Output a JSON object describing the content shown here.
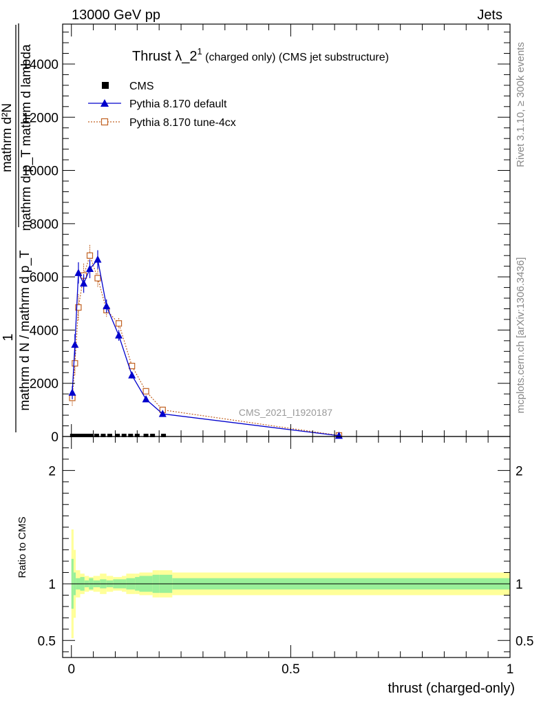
{
  "header": {
    "left": "13000 GeV pp",
    "right": "Jets"
  },
  "side": {
    "rivet": "Rivet 3.1.10, ≥ 300k events",
    "mcplots": "mcplots.cern.ch [arXiv:1306.3436]"
  },
  "chart_data": {
    "type": "scatter",
    "title_main": "Thrust λ_2",
    "title_sup": "1",
    "title_rest": " (charged only) (CMS jet substructure)",
    "ylabel_top_line1": "mathrm d²N",
    "ylabel_top_line2": "mathrm d p_T mathrm d lambda",
    "ylabel_bottom": "mathrm d N / mathrm d p_T",
    "ylabel_one": "1",
    "ratio_ylabel": "Ratio to CMS",
    "xlabel": "thrust (charged-only)",
    "watermark": "CMS_2021_I1920187",
    "xlim": [
      -0.02,
      1.0
    ],
    "ylim": [
      0,
      15500
    ],
    "ratio_ylim": [
      0.35,
      2.3
    ],
    "yticks": [
      "0",
      "2000",
      "4000",
      "6000",
      "8000",
      "10000",
      "12000",
      "14000"
    ],
    "xticks": [
      "0",
      "0.5",
      "1"
    ],
    "ratio_yticks": [
      "0.5",
      "1",
      "2"
    ],
    "legend": [
      {
        "name": "CMS",
        "marker": "square",
        "color": "#000000"
      },
      {
        "name": "Pythia 8.170 default",
        "marker": "triangle",
        "color": "#0000cc"
      },
      {
        "name": "Pythia 8.170 tune-4cx",
        "marker": "open-square",
        "color": "#c06020"
      }
    ],
    "series": [
      {
        "name": "CMS",
        "x": [
          0.0025,
          0.0075,
          0.0125,
          0.0175,
          0.025,
          0.035,
          0.045,
          0.0575,
          0.0725,
          0.0875,
          0.105,
          0.12,
          0.135,
          0.15,
          0.17,
          0.185,
          0.21
        ],
        "y": [
          0,
          0,
          0,
          0,
          0,
          0,
          0,
          0,
          0,
          0,
          0,
          0,
          0,
          0,
          0,
          0,
          0
        ]
      },
      {
        "name": "Pythia 8.170 default",
        "x": [
          0.002,
          0.008,
          0.016,
          0.028,
          0.042,
          0.06,
          0.08,
          0.108,
          0.138,
          0.17,
          0.208,
          0.61
        ],
        "y": [
          1650,
          3450,
          6150,
          5750,
          6300,
          6650,
          4900,
          3800,
          2300,
          1400,
          850,
          30
        ],
        "err": [
          250,
          400,
          400,
          350,
          350,
          350,
          250,
          200,
          120,
          80,
          50,
          10
        ]
      },
      {
        "name": "Pythia 8.170 tune-4cx",
        "x": [
          0.002,
          0.008,
          0.016,
          0.028,
          0.042,
          0.06,
          0.08,
          0.108,
          0.138,
          0.17,
          0.208,
          0.61
        ],
        "y": [
          1450,
          2750,
          4850,
          6050,
          6800,
          5950,
          4750,
          4250,
          2650,
          1700,
          1000,
          40
        ],
        "err": [
          300,
          450,
          500,
          450,
          400,
          350,
          250,
          200,
          120,
          80,
          50,
          10
        ]
      }
    ],
    "ratio_bands": {
      "x_edges": [
        0.0,
        0.005,
        0.01,
        0.02,
        0.03,
        0.04,
        0.05,
        0.065,
        0.08,
        0.095,
        0.115,
        0.125,
        0.145,
        0.155,
        0.185,
        0.2,
        0.23,
        1.0
      ],
      "inner_half": [
        0.22,
        0.1,
        0.05,
        0.06,
        0.03,
        0.05,
        0.03,
        0.04,
        0.03,
        0.04,
        0.04,
        0.05,
        0.06,
        0.07,
        0.08,
        0.08,
        0.05
      ],
      "outer_half": [
        0.48,
        0.3,
        0.12,
        0.09,
        0.07,
        0.06,
        0.07,
        0.09,
        0.07,
        0.06,
        0.07,
        0.09,
        0.09,
        0.1,
        0.12,
        0.12,
        0.1
      ]
    },
    "colors": {
      "inner_band": "#99f099",
      "outer_band": "#ffff99",
      "default": "#0000cc",
      "tune": "#c06020"
    }
  }
}
